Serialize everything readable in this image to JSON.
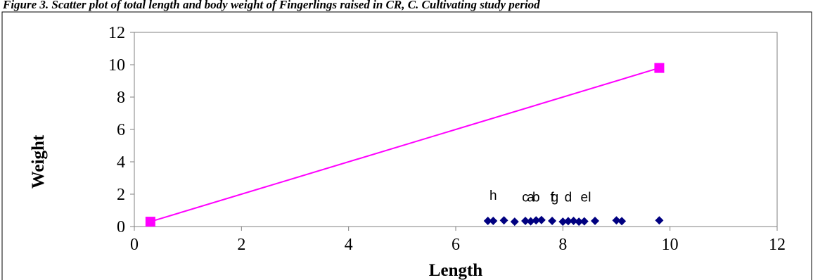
{
  "caption": "Figure 3. Scatter plot of total length and body weight of Fingerlings raised in CR, C. Cultivating study period",
  "chart_data": {
    "type": "scatter",
    "xlabel": "Length",
    "ylabel": "Weight",
    "xlim": [
      0,
      12
    ],
    "ylim": [
      0,
      12
    ],
    "xticks": [
      "0",
      "2",
      "4",
      "6",
      "8",
      "10",
      "12"
    ],
    "yticks": [
      "0",
      "2",
      "4",
      "6",
      "8",
      "10",
      "12"
    ],
    "grid": false,
    "series": [
      {
        "color": "#000080",
        "marker": "diamond",
        "points": [
          {
            "x": 6.6,
            "y": 0.35
          },
          {
            "x": 6.7,
            "y": 0.35
          },
          {
            "x": 6.9,
            "y": 0.38
          },
          {
            "x": 7.1,
            "y": 0.3
          },
          {
            "x": 7.3,
            "y": 0.35
          },
          {
            "x": 7.4,
            "y": 0.32
          },
          {
            "x": 7.5,
            "y": 0.38
          },
          {
            "x": 7.6,
            "y": 0.4
          },
          {
            "x": 7.8,
            "y": 0.35
          },
          {
            "x": 8.0,
            "y": 0.3
          },
          {
            "x": 8.1,
            "y": 0.33
          },
          {
            "x": 8.2,
            "y": 0.35
          },
          {
            "x": 8.3,
            "y": 0.3
          },
          {
            "x": 8.4,
            "y": 0.32
          },
          {
            "x": 8.6,
            "y": 0.35
          },
          {
            "x": 9.0,
            "y": 0.38
          },
          {
            "x": 9.1,
            "y": 0.33
          },
          {
            "x": 9.8,
            "y": 0.38
          }
        ]
      },
      {
        "color": "#ff00ff",
        "marker": "square",
        "line": true,
        "points": [
          {
            "x": 0.3,
            "y": 0.3
          },
          {
            "x": 9.8,
            "y": 9.8
          }
        ]
      }
    ],
    "annotations": [
      {
        "text": "h",
        "x": 6.7,
        "y": 1.65
      },
      {
        "text": "c",
        "x": 7.3,
        "y": 1.55
      },
      {
        "text": "a",
        "x": 7.4,
        "y": 1.55
      },
      {
        "text": "b",
        "x": 7.5,
        "y": 1.55
      },
      {
        "text": "f",
        "x": 7.8,
        "y": 1.55
      },
      {
        "text": "g",
        "x": 7.85,
        "y": 1.55
      },
      {
        "text": "d",
        "x": 8.1,
        "y": 1.55
      },
      {
        "text": "e",
        "x": 8.4,
        "y": 1.55
      },
      {
        "text": "l",
        "x": 8.5,
        "y": 1.55
      }
    ]
  }
}
